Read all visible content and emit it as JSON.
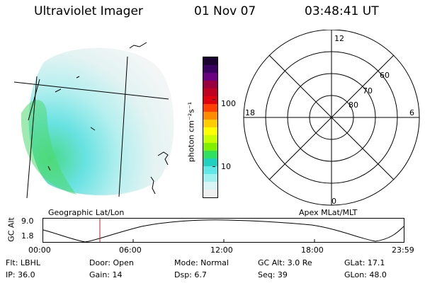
{
  "header": {
    "instrument": "Ultraviolet Imager",
    "date": "01 Nov 07",
    "time": "03:48:41 UT"
  },
  "colorbar": {
    "unit_label": "photon cm⁻²s⁻¹",
    "ticks": [
      "100",
      "10"
    ],
    "colors": [
      "#1a0030",
      "#3a0060",
      "#6a0080",
      "#9a0040",
      "#c00020",
      "#e00010",
      "#ff4000",
      "#ff8c00",
      "#ffcc00",
      "#ffff00",
      "#c8ff00",
      "#80f000",
      "#30e060",
      "#20d0c0",
      "#60e8e8",
      "#a0f0f0",
      "#d8f4f4",
      "#f0f0f0"
    ]
  },
  "polar_plot": {
    "mlt_labels": {
      "top": "12",
      "left": "18",
      "right": "6",
      "bottom": "0"
    },
    "lat_labels": [
      "60",
      "70",
      "80"
    ]
  },
  "timeline": {
    "gc_alt_label": "GC Alt",
    "y_ticks": [
      "9.0",
      "1.8"
    ],
    "left_caption": "Geographic Lat/Lon",
    "right_caption": "Apex MLat/MLT",
    "x_ticks": [
      "00:00",
      "06:00",
      "12:00",
      "18:00",
      "23:59"
    ],
    "marker_color": "#c02020"
  },
  "status": {
    "row1": {
      "filter": "Flt: LBHL",
      "door": "Door: Open",
      "mode": "Mode: Normal",
      "gc_alt": "GC Alt: 3.0 Re",
      "glat": "GLat:  17.1"
    },
    "row2": {
      "ip": "IP: 36.0",
      "gain": "Gain: 14",
      "dsp": "Dsp:     6.7",
      "seq": "Seq: 39",
      "glon": "GLon:  48.0"
    }
  }
}
